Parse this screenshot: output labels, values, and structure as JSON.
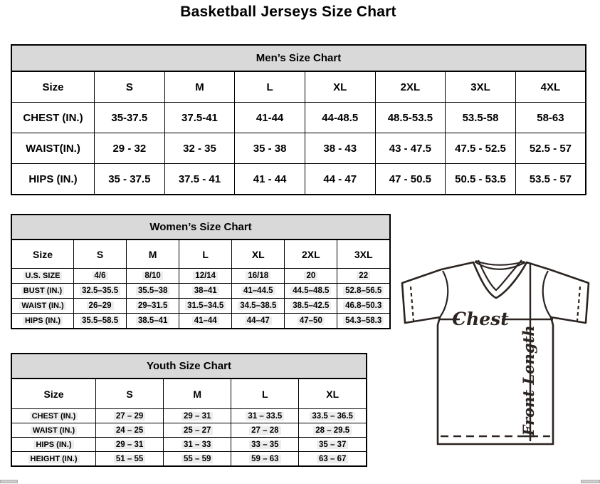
{
  "page": {
    "title": "Basketball Jerseys Size Chart"
  },
  "tables": {
    "men": {
      "title": "Men’s Size Chart",
      "columns": [
        "Size",
        "S",
        "M",
        "L",
        "XL",
        "2XL",
        "3XL",
        "4XL"
      ],
      "rows": [
        {
          "label": "CHEST (IN.)",
          "values": [
            "35-37.5",
            "37.5-41",
            "41-44",
            "44-48.5",
            "48.5-53.5",
            "53.5-58",
            "58-63"
          ]
        },
        {
          "label": "WAIST(IN.)",
          "values": [
            "29 - 32",
            "32 - 35",
            "35 - 38",
            "38 - 43",
            "43 - 47.5",
            "47.5 - 52.5",
            "52.5 - 57"
          ]
        },
        {
          "label": "HIPS (IN.)",
          "values": [
            "35 - 37.5",
            "37.5 - 41",
            "41 - 44",
            "44 - 47",
            "47 - 50.5",
            "50.5 - 53.5",
            "53.5 - 57"
          ]
        }
      ]
    },
    "women": {
      "title": "Women’s Size Chart",
      "columns": [
        "Size",
        "S",
        "M",
        "L",
        "XL",
        "2XL",
        "3XL"
      ],
      "rows": [
        {
          "label": "U.S. SIZE",
          "values": [
            "4/6",
            "8/10",
            "12/14",
            "16/18",
            "20",
            "22"
          ]
        },
        {
          "label": "BUST (IN.)",
          "values": [
            "32.5–35.5",
            "35.5–38",
            "38–41",
            "41–44.5",
            "44.5–48.5",
            "52.8–56.5"
          ]
        },
        {
          "label": "WAIST (IN.)",
          "values": [
            "26–29",
            "29–31.5",
            "31.5–34.5",
            "34.5–38.5",
            "38.5–42.5",
            "46.8–50.3"
          ]
        },
        {
          "label": "HIPS (IN.)",
          "values": [
            "35.5–58.5",
            "38.5–41",
            "41–44",
            "44–47",
            "47–50",
            "54.3–58.3"
          ]
        }
      ]
    },
    "youth": {
      "title": "Youth Size Chart",
      "columns": [
        "Size",
        "S",
        "M",
        "L",
        "XL"
      ],
      "rows": [
        {
          "label": "CHEST (IN.)",
          "values": [
            "27 – 29",
            "29 – 31",
            "31 – 33.5",
            "33.5 – 36.5"
          ]
        },
        {
          "label": "WAIST (IN.)",
          "values": [
            "24 – 25",
            "25 – 27",
            "27 – 28",
            "28 – 29.5"
          ]
        },
        {
          "label": "HIPS (IN.)",
          "values": [
            "29 – 31",
            "31 – 33",
            "33 – 35",
            "35 – 37"
          ]
        },
        {
          "label": "HEIGHT (IN.)",
          "values": [
            "51 – 55",
            "55 – 59",
            "59 – 63",
            "63 – 67"
          ]
        }
      ]
    }
  },
  "diagram": {
    "chest_label": "Chest",
    "front_length_label": "Front Length"
  },
  "colors": {
    "section_header_bg": "#d9d9d9",
    "table_border": "#000000",
    "value_highlight": "#ededed",
    "diagram_line": "#2b2421",
    "scrollbar_fragment": "#cfcfcf"
  }
}
